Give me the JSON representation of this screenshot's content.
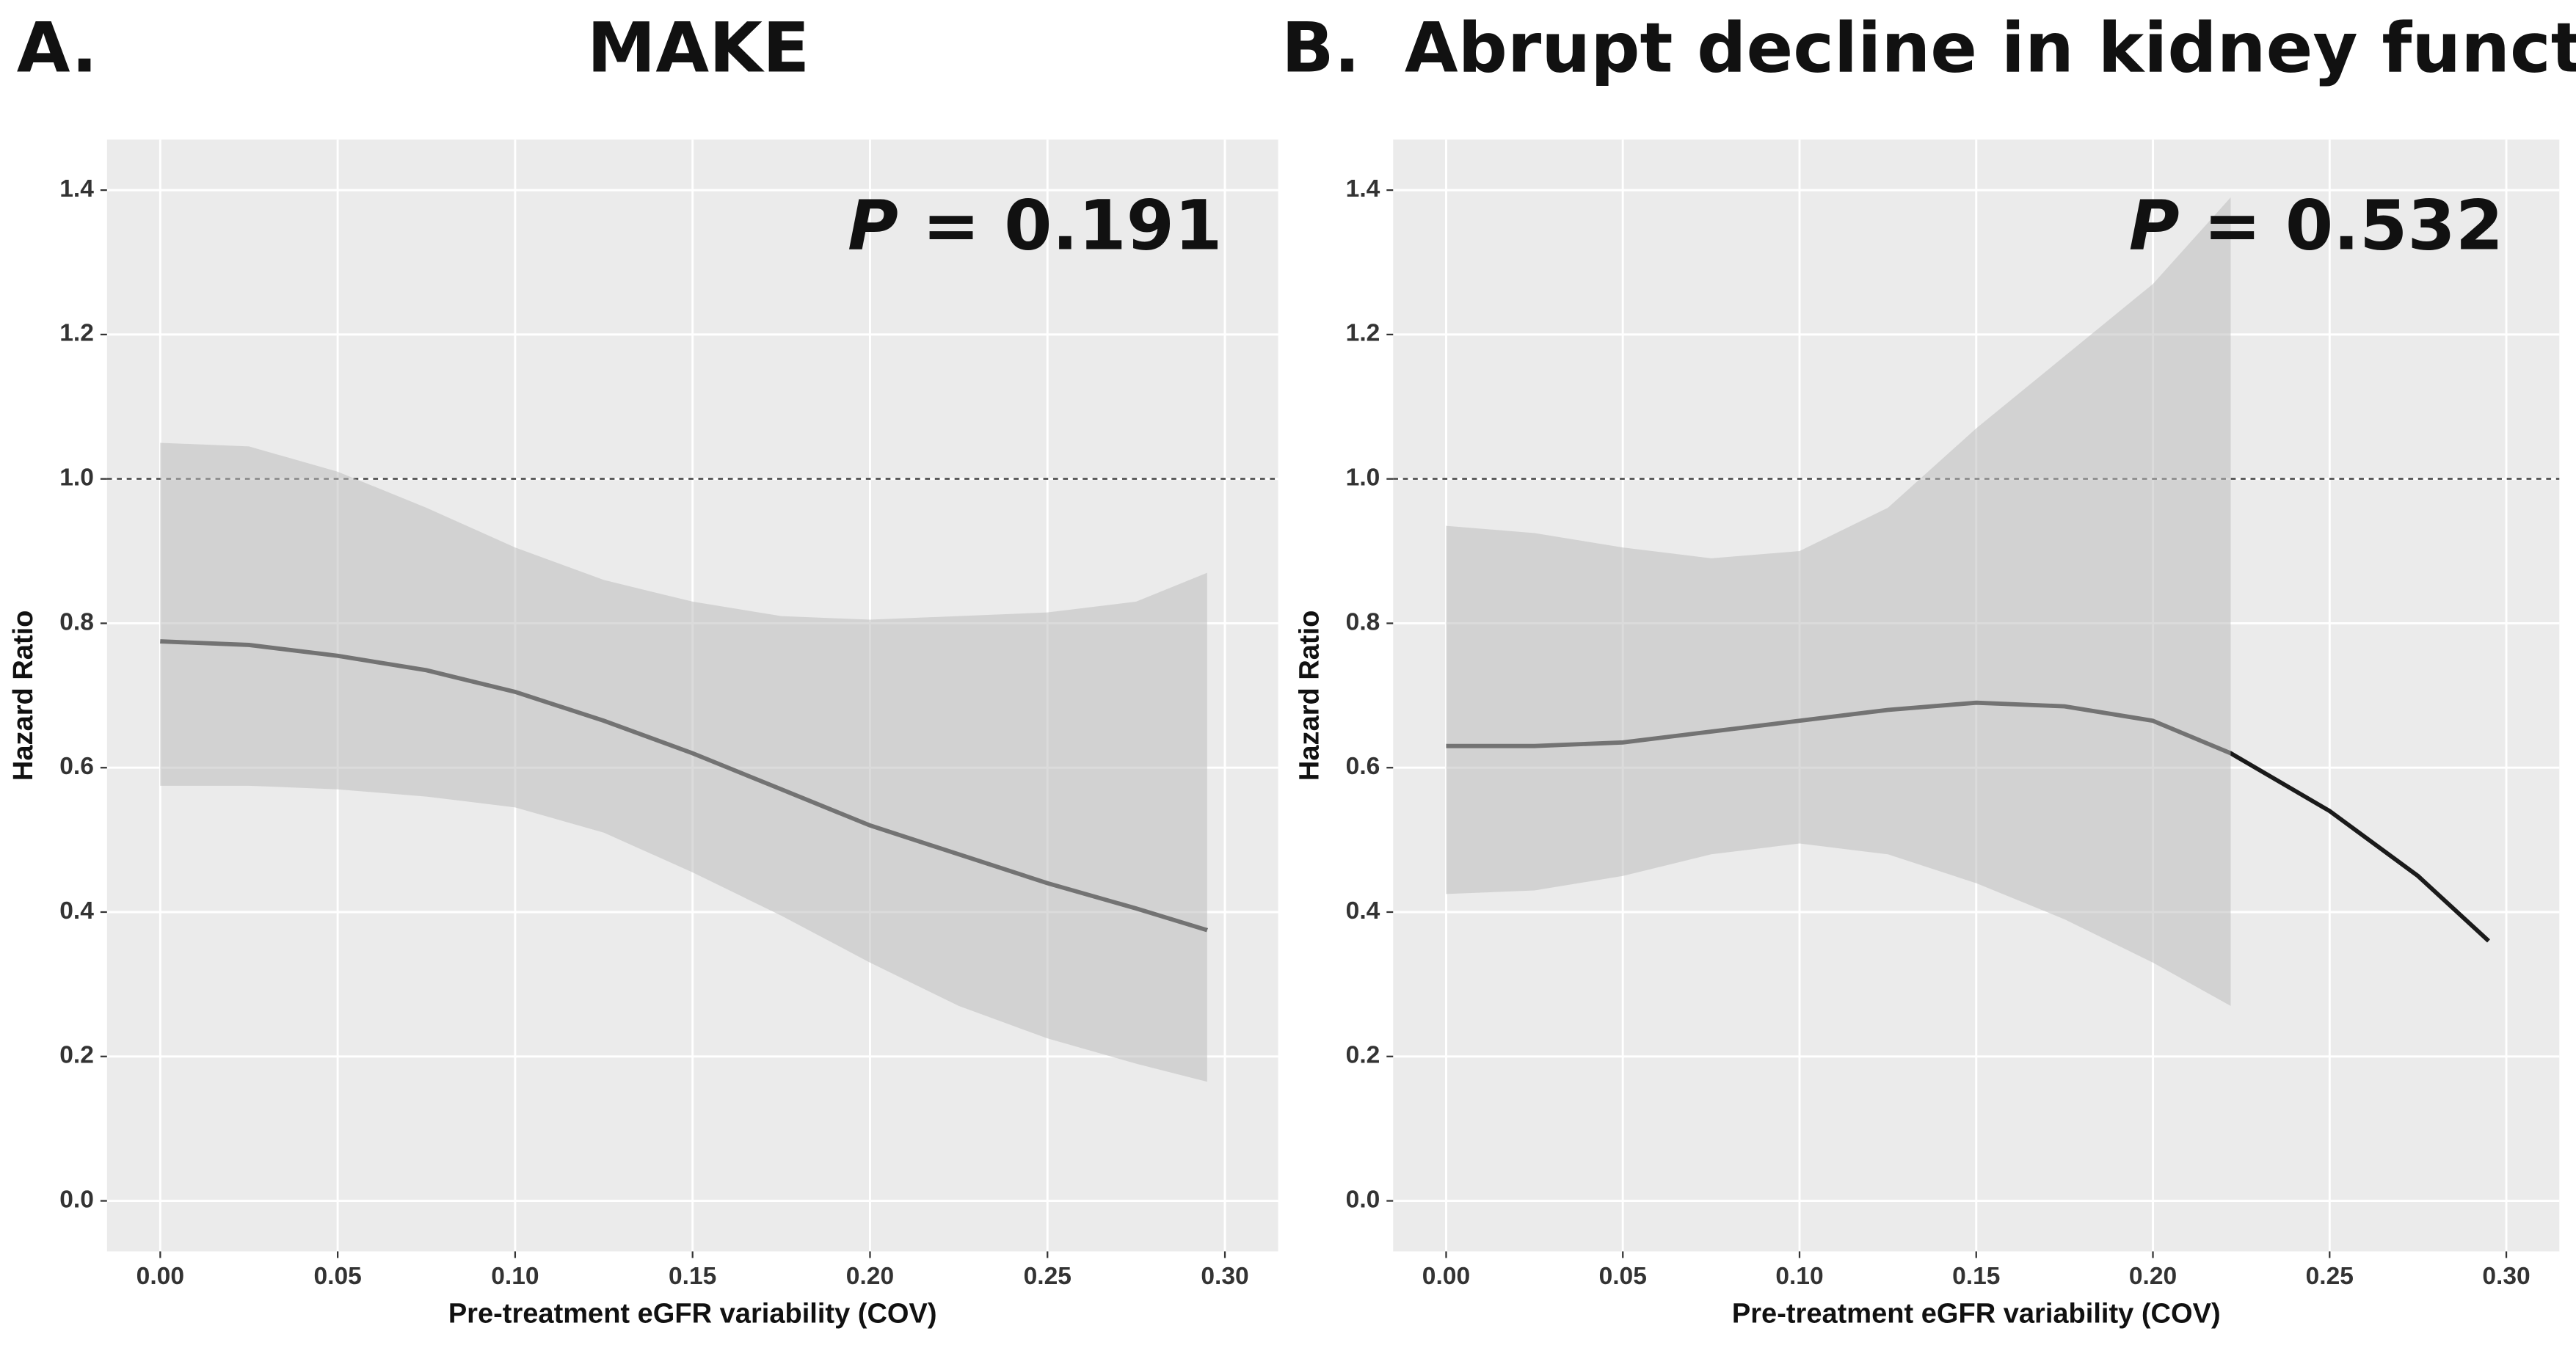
{
  "chart_data": [
    {
      "type": "line",
      "panel_label": "A.",
      "title": "MAKE",
      "annotation": {
        "symbol": "P",
        "text": "= 0.191"
      },
      "xlabel": "Pre-treatment eGFR variability (COV)",
      "ylabel": "Hazard Ratio",
      "x": [
        0,
        0.025,
        0.05,
        0.075,
        0.1,
        0.125,
        0.15,
        0.175,
        0.2,
        0.225,
        0.25,
        0.275,
        0.295
      ],
      "values": [
        0.775,
        0.77,
        0.755,
        0.735,
        0.705,
        0.665,
        0.62,
        0.57,
        0.52,
        0.48,
        0.44,
        0.405,
        0.375
      ],
      "upper": [
        1.05,
        1.045,
        1.01,
        0.96,
        0.905,
        0.86,
        0.83,
        0.81,
        0.805,
        0.81,
        0.815,
        0.83,
        0.87
      ],
      "lower": [
        0.575,
        0.575,
        0.57,
        0.56,
        0.545,
        0.51,
        0.455,
        0.395,
        0.33,
        0.27,
        0.225,
        0.19,
        0.165
      ],
      "color": "#1a1a1a",
      "band_color": "#bdbdbd",
      "hline": 1,
      "xlim": [
        -0.015,
        0.315
      ],
      "ylim": [
        -0.07,
        1.47
      ],
      "xticks": [
        {
          "value": 0,
          "label": "0.00"
        },
        {
          "value": 0.05,
          "label": "0.05"
        },
        {
          "value": 0.1,
          "label": "0.10"
        },
        {
          "value": 0.15,
          "label": "0.15"
        },
        {
          "value": 0.2,
          "label": "0.20"
        },
        {
          "value": 0.25,
          "label": "0.25"
        },
        {
          "value": 0.3,
          "label": "0.30"
        }
      ],
      "yticks": [
        {
          "value": 0,
          "label": "0.0"
        },
        {
          "value": 0.2,
          "label": "0.2"
        },
        {
          "value": 0.4,
          "label": "0.4"
        },
        {
          "value": 0.6,
          "label": "0.6"
        },
        {
          "value": 0.8,
          "label": "0.8"
        },
        {
          "value": 1,
          "label": "1.0"
        },
        {
          "value": 1.2,
          "label": "1.2"
        },
        {
          "value": 1.4,
          "label": "1.4"
        }
      ],
      "grid": true
    },
    {
      "type": "line",
      "panel_label": "B.",
      "title": "Abrupt decline in kidney function",
      "annotation": {
        "symbol": "P",
        "text": "= 0.532"
      },
      "xlabel": "Pre-treatment eGFR variability (COV)",
      "ylabel": "Hazard Ratio",
      "x": [
        0,
        0.025,
        0.05,
        0.075,
        0.1,
        0.125,
        0.15,
        0.175,
        0.2,
        0.222,
        0.25,
        0.275,
        0.295
      ],
      "values": [
        0.63,
        0.63,
        0.635,
        0.65,
        0.665,
        0.68,
        0.69,
        0.685,
        0.665,
        0.62,
        0.54,
        0.45,
        0.36
      ],
      "upper": [
        0.935,
        0.925,
        0.905,
        0.89,
        0.9,
        0.96,
        1.07,
        1.17,
        1.27,
        1.39,
        null,
        null,
        null
      ],
      "lower": [
        0.425,
        0.43,
        0.45,
        0.48,
        0.495,
        0.48,
        0.44,
        0.39,
        0.33,
        0.27,
        null,
        null,
        null
      ],
      "color": "#1a1a1a",
      "band_color": "#bdbdbd",
      "hline": 1,
      "xlim": [
        -0.015,
        0.315
      ],
      "ylim": [
        -0.07,
        1.47
      ],
      "xticks": [
        {
          "value": 0,
          "label": "0.00"
        },
        {
          "value": 0.05,
          "label": "0.05"
        },
        {
          "value": 0.1,
          "label": "0.10"
        },
        {
          "value": 0.15,
          "label": "0.15"
        },
        {
          "value": 0.2,
          "label": "0.20"
        },
        {
          "value": 0.25,
          "label": "0.25"
        },
        {
          "value": 0.3,
          "label": "0.30"
        }
      ],
      "yticks": [
        {
          "value": 0,
          "label": "0.0"
        },
        {
          "value": 0.2,
          "label": "0.2"
        },
        {
          "value": 0.4,
          "label": "0.4"
        },
        {
          "value": 0.6,
          "label": "0.6"
        },
        {
          "value": 0.8,
          "label": "0.8"
        },
        {
          "value": 1,
          "label": "1.0"
        },
        {
          "value": 1.2,
          "label": "1.2"
        },
        {
          "value": 1.4,
          "label": "1.4"
        }
      ],
      "grid": true
    }
  ]
}
